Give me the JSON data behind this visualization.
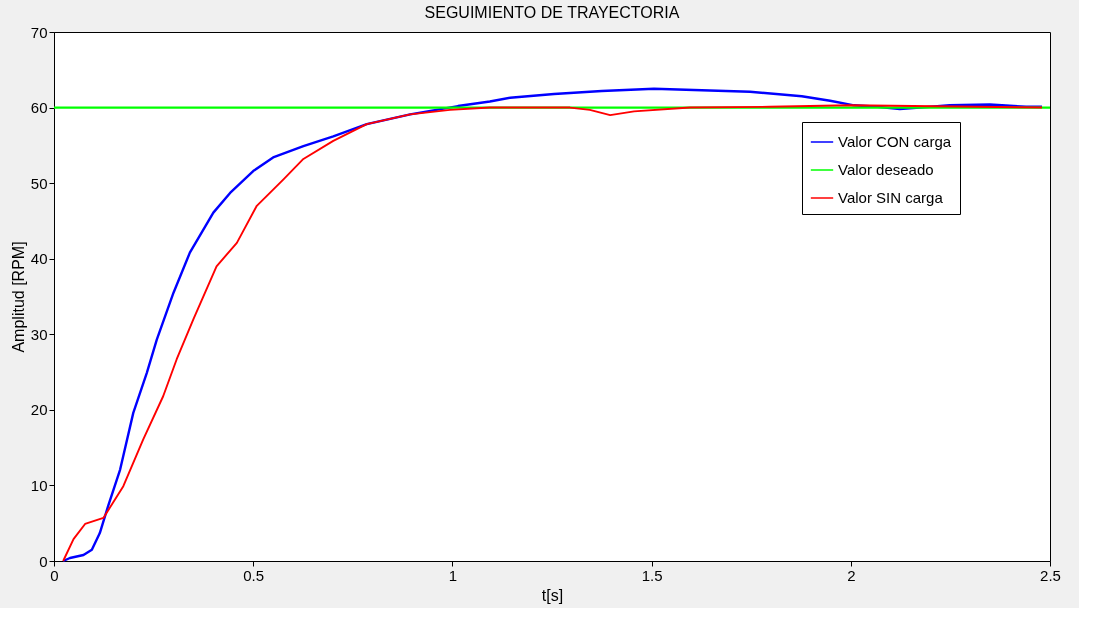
{
  "chart_data": {
    "type": "line",
    "title": "SEGUIMIENTO DE TRAYECTORIA",
    "xlabel": "t[s]",
    "ylabel": "Amplitud [RPM]",
    "xlim": [
      0,
      2.5
    ],
    "ylim": [
      0,
      70
    ],
    "xticks": [
      0,
      0.5,
      1,
      1.5,
      2,
      2.5
    ],
    "yticks": [
      0,
      10,
      20,
      30,
      40,
      50,
      60,
      70
    ],
    "grid": false,
    "legend": "top right",
    "line_style": "solid",
    "marker": "none",
    "series": [
      {
        "name": "Valor CON carga",
        "color": "#0000ff",
        "x": [
          0.023,
          0.04,
          0.074,
          0.095,
          0.115,
          0.136,
          0.166,
          0.199,
          0.233,
          0.258,
          0.3,
          0.341,
          0.4,
          0.442,
          0.5,
          0.55,
          0.626,
          0.701,
          0.785,
          0.894,
          1.014,
          1.094,
          1.145,
          1.255,
          1.375,
          1.506,
          1.626,
          1.747,
          1.877,
          1.948,
          2.008,
          2.067,
          2.123,
          2.248,
          2.349,
          2.44,
          2.48
        ],
        "values": [
          0,
          0.4,
          0.8,
          1.5,
          3.7,
          7.3,
          12.1,
          19.6,
          24.9,
          29.3,
          35.5,
          40.8,
          46.1,
          48.7,
          51.6,
          53.4,
          54.9,
          56.2,
          57.8,
          59.1,
          60.2,
          60.8,
          61.3,
          61.8,
          62.2,
          62.5,
          62.3,
          62.1,
          61.5,
          60.9,
          60.3,
          60.1,
          59.8,
          60.3,
          60.4,
          60.1,
          60.1
        ]
      },
      {
        "name": "Valor deseado",
        "color": "#00ff00",
        "x": [
          0,
          2.5
        ],
        "values": [
          60,
          60
        ]
      },
      {
        "name": "Valor SIN carga",
        "color": "#ff0000",
        "x": [
          0.023,
          0.049,
          0.078,
          0.124,
          0.174,
          0.224,
          0.274,
          0.308,
          0.35,
          0.408,
          0.459,
          0.509,
          0.576,
          0.626,
          0.701,
          0.785,
          0.894,
          0.994,
          1.094,
          1.295,
          1.345,
          1.396,
          1.456,
          1.596,
          1.797,
          1.998,
          2.48
        ],
        "values": [
          0,
          2.9,
          4.9,
          5.7,
          9.9,
          16.1,
          21.8,
          26.7,
          32,
          39,
          42.1,
          47,
          50.5,
          53.2,
          55.6,
          57.8,
          59.1,
          59.7,
          60,
          60,
          59.7,
          59,
          59.5,
          60,
          60.1,
          60.3,
          60
        ]
      }
    ]
  }
}
